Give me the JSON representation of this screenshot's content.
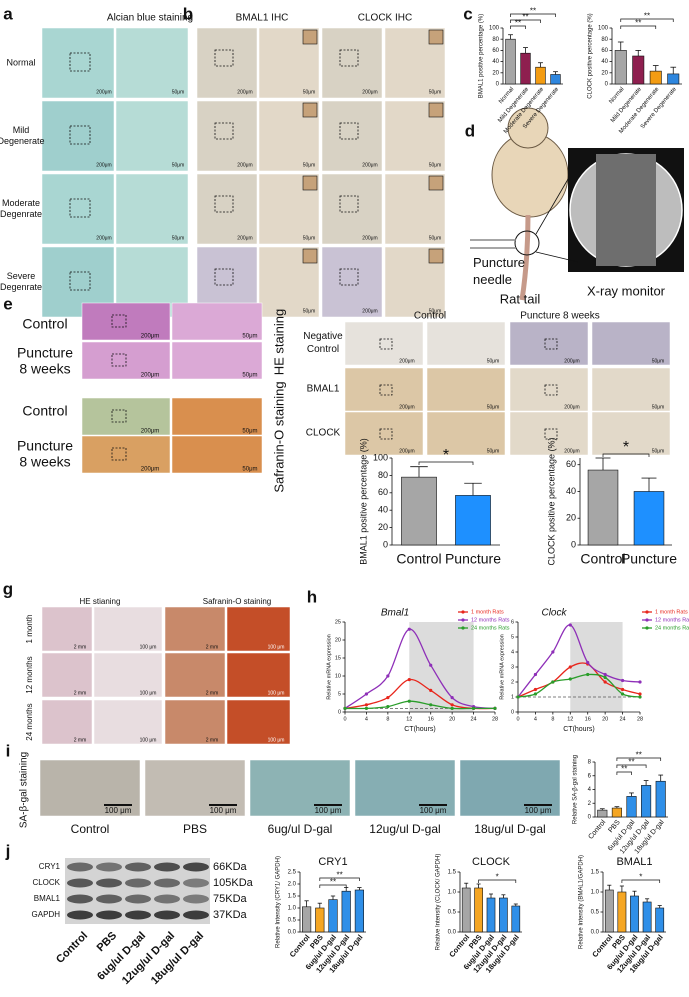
{
  "panel_labels": [
    "a",
    "b",
    "c",
    "d",
    "e",
    "f",
    "g",
    "h",
    "i",
    "j"
  ],
  "panel_a": {
    "title": "Alcian blue staining",
    "rows": [
      [
        "Normal"
      ],
      [
        "Mild",
        "Degenerate"
      ],
      [
        "Moderate",
        "Degenrate"
      ],
      [
        "Severe",
        "Degenrate"
      ]
    ],
    "scale_low": "200μm",
    "scale_high": "50μm"
  },
  "panel_b": {
    "titles": [
      "BMAL1 IHC",
      "CLOCK IHC"
    ],
    "scale_low": "200μm",
    "scale_high": "50μm"
  },
  "panel_d": {
    "needle": [
      "Puncture",
      "needle"
    ],
    "tail": "Rat tail",
    "monitor": "X-ray monitor"
  },
  "panel_e": {
    "rows": [
      [
        "Control"
      ],
      [
        "Puncture",
        "8 weeks"
      ]
    ],
    "stains": [
      "HE staining",
      "Safranin-O staining"
    ],
    "scale_low": "200μm",
    "scale_high": "50μm"
  },
  "panel_f": {
    "columns": [
      "Control",
      "Puncture 8 weeks"
    ],
    "rows": [
      [
        "Negative",
        "Control"
      ],
      [
        "BMAL1"
      ],
      [
        "CLOCK"
      ]
    ],
    "scale_low": "200μm",
    "scale_high": "50μm"
  },
  "panel_g": {
    "columns": [
      "HE stianing",
      "Safranin-O staining"
    ],
    "rows": [
      "1 month",
      "12 months",
      "24 months"
    ],
    "scale_low": "2 mm",
    "scale_high": "100 μm"
  },
  "panel_i": {
    "side_label": "SA-β-gal staining",
    "captions": [
      "Control",
      "PBS",
      "6ug/ul D-gal",
      "12ug/ul D-gal",
      "18ug/ul D-gal"
    ],
    "scale": "100 μm"
  },
  "panel_j": {
    "proteins": [
      "CRY1",
      "CLOCK",
      "BMAL1",
      "GAPDH"
    ],
    "sizes": [
      "66KDa",
      "105KDa",
      "75KDa",
      "37KDa"
    ],
    "lanes": [
      "Control",
      "PBS",
      "6ug/ul D-gal",
      "12ug/ul D-gal",
      "18ug/ul D-gal"
    ]
  },
  "chart_data": [
    {
      "type": "bar",
      "y_label": "BMAL1 positive percentage (%)",
      "categories": [
        "Normal",
        "Mild Degenerate",
        "Moderate Degenerate",
        "Severe Degenerate"
      ],
      "values": [
        80,
        55,
        30,
        17
      ],
      "errors": [
        8,
        10,
        8,
        5
      ],
      "colors": [
        "#a6a6a6",
        "#8e1f4f",
        "#f39c12",
        "#2e86de"
      ],
      "ylim": [
        0,
        100
      ],
      "yticks": [
        0,
        20,
        40,
        60,
        80,
        100
      ],
      "significance": [
        {
          "label": "**",
          "between": [
            "Normal",
            "Mild Degenerate"
          ]
        },
        {
          "label": "**",
          "between": [
            "Normal",
            "Moderate Degenerate"
          ]
        },
        {
          "label": "**",
          "between": [
            "Normal",
            "Severe Degenerate"
          ]
        }
      ]
    },
    {
      "type": "bar",
      "y_label": "CLOCK positive percentage (%)",
      "categories": [
        "Normal",
        "Mild Degenerate",
        "Moderate Degenerate",
        "Severe Degenerate"
      ],
      "values": [
        60,
        50,
        23,
        18
      ],
      "errors": [
        15,
        10,
        10,
        12
      ],
      "colors": [
        "#a6a6a6",
        "#8e1f4f",
        "#f39c12",
        "#2e86de"
      ],
      "ylim": [
        0,
        100
      ],
      "yticks": [
        0,
        20,
        40,
        60,
        80,
        100
      ],
      "significance": [
        {
          "label": "**",
          "between": [
            "Normal",
            "Moderate Degenerate"
          ]
        },
        {
          "label": "**",
          "between": [
            "Normal",
            "Severe Degenerate"
          ]
        }
      ]
    },
    {
      "type": "bar",
      "y_label": "BMAL1 positive percentage (%)",
      "categories": [
        "Control",
        "Puncture"
      ],
      "values": [
        78,
        57
      ],
      "errors": [
        12,
        14
      ],
      "colors": [
        "#a6a6a6",
        "#1e90ff"
      ],
      "ylim": [
        0,
        100
      ],
      "yticks": [
        0,
        20,
        40,
        60,
        80,
        100
      ],
      "significance": [
        {
          "label": "*",
          "between": [
            "Control",
            "Puncture"
          ]
        }
      ]
    },
    {
      "type": "bar",
      "y_label": "CLOCK positive percentage (%)",
      "categories": [
        "Control",
        "Puncture"
      ],
      "values": [
        56,
        40
      ],
      "errors": [
        9,
        10
      ],
      "colors": [
        "#a6a6a6",
        "#1e90ff"
      ],
      "ylim": [
        0,
        65
      ],
      "yticks": [
        0,
        20,
        40,
        60
      ],
      "significance": [
        {
          "label": "*",
          "between": [
            "Control",
            "Puncture"
          ]
        }
      ]
    },
    {
      "type": "line",
      "title": "Bmal1",
      "x_label": "CT(hours)",
      "y_label": "Relative mRNA expression",
      "x": [
        0,
        4,
        8,
        12,
        16,
        20,
        24,
        28
      ],
      "xlim": [
        0,
        28
      ],
      "xticks": [
        0,
        4,
        8,
        12,
        16,
        20,
        24,
        28
      ],
      "ylim": [
        0,
        25
      ],
      "yticks": [
        0,
        5,
        10,
        15,
        20,
        25
      ],
      "shaded_x": [
        12,
        24
      ],
      "reference_y": 1,
      "series": [
        {
          "name": "1 month Rats",
          "color": "#e8261c",
          "values": [
            1,
            2,
            4,
            9,
            6,
            2,
            1,
            1
          ]
        },
        {
          "name": "12 months Rats",
          "color": "#8e2fb8",
          "values": [
            1,
            5,
            10,
            23,
            13,
            4,
            1.5,
            1
          ]
        },
        {
          "name": "24 months Rats",
          "color": "#2a9d2a",
          "values": [
            1,
            1,
            1.5,
            3,
            2,
            1,
            1,
            1
          ]
        }
      ]
    },
    {
      "type": "line",
      "title": "Clock",
      "x_label": "CT(hours)",
      "y_label": "Relative mRNA expression",
      "x": [
        0,
        4,
        8,
        12,
        16,
        20,
        24,
        28
      ],
      "xlim": [
        0,
        28
      ],
      "xticks": [
        0,
        4,
        8,
        12,
        16,
        20,
        24,
        28
      ],
      "ylim": [
        0,
        6
      ],
      "yticks": [
        0,
        1,
        2,
        3,
        4,
        5,
        6
      ],
      "shaded_x": [
        12,
        24
      ],
      "reference_y": 1,
      "series": [
        {
          "name": "1 month Rats",
          "color": "#e8261c",
          "values": [
            1,
            1.5,
            2,
            3,
            3.2,
            2,
            1.5,
            1.2
          ]
        },
        {
          "name": "12 months Rats",
          "color": "#8e2fb8",
          "values": [
            1,
            2.5,
            4,
            5.8,
            3.3,
            2.5,
            2.1,
            2
          ]
        },
        {
          "name": "24 months Rats",
          "color": "#2a9d2a",
          "values": [
            1,
            1.2,
            2,
            2.2,
            2.5,
            2.3,
            1.2,
            1
          ]
        }
      ]
    },
    {
      "type": "bar",
      "y_label": "Relative SA-β-gal staining",
      "categories": [
        "Control",
        "PBS",
        "6ug/ul D-gal",
        "12ug/ul D-gal",
        "18ug/ul D-gal"
      ],
      "values": [
        1,
        1.3,
        3,
        4.6,
        5.2
      ],
      "errors": [
        0.2,
        0.2,
        0.5,
        0.7,
        0.9
      ],
      "colors": [
        "#a6a6a6",
        "#f5a623",
        "#2f8fe8",
        "#2f8fe8",
        "#2f8fe8"
      ],
      "ylim": [
        0,
        8
      ],
      "yticks": [
        0,
        2,
        4,
        6,
        8
      ],
      "significance": [
        {
          "label": "**",
          "between": [
            "PBS",
            "6ug/ul D-gal"
          ]
        },
        {
          "label": "**",
          "between": [
            "PBS",
            "12ug/ul D-gal"
          ]
        },
        {
          "label": "**",
          "between": [
            "PBS",
            "18ug/ul D-gal"
          ]
        }
      ]
    },
    {
      "type": "bar",
      "title": "CRY1",
      "y_label": "Relative Intensity (CRY1/ GAPDH)",
      "categories": [
        "Control",
        "PBS",
        "6ug/ul D-gal",
        "12ug/ul D-gal",
        "18ug/ul D-gal"
      ],
      "values": [
        1.05,
        1,
        1.35,
        1.7,
        1.75
      ],
      "errors": [
        0.25,
        0.2,
        0.15,
        0.15,
        0.1
      ],
      "colors": [
        "#a6a6a6",
        "#f5a623",
        "#2f8fe8",
        "#2f8fe8",
        "#2f8fe8"
      ],
      "ylim": [
        0,
        2.5
      ],
      "yticks": [
        {
          "value": 0,
          "label": "0.0"
        },
        0.5,
        {
          "value": 1,
          "label": "1.0"
        },
        1.5,
        {
          "value": 2,
          "label": "2.0"
        },
        2.5
      ],
      "significance": [
        {
          "label": "**",
          "between": [
            "PBS",
            "12ug/ul D-gal"
          ]
        },
        {
          "label": "**",
          "between": [
            "PBS",
            "18ug/ul D-gal"
          ]
        }
      ]
    },
    {
      "type": "bar",
      "title": "CLOCK",
      "y_label": "Relative Intensity (CLOCK/ GAPDH)",
      "categories": [
        "Control",
        "PBS",
        "6ug/ul D-gal",
        "12ug/ul D-gal",
        "18ug/ul D-gal"
      ],
      "values": [
        1.1,
        1.1,
        0.85,
        0.85,
        0.65
      ],
      "errors": [
        0.12,
        0.1,
        0.1,
        0.08,
        0.05
      ],
      "colors": [
        "#a6a6a6",
        "#f5a623",
        "#2f8fe8",
        "#2f8fe8",
        "#2f8fe8"
      ],
      "ylim": [
        0,
        1.5
      ],
      "yticks": [
        {
          "value": 0,
          "label": "0.0"
        },
        0.5,
        {
          "value": 1,
          "label": "1.0"
        },
        1.5
      ],
      "significance": [
        {
          "label": "*",
          "between": [
            "PBS",
            "18ug/ul D-gal"
          ]
        }
      ]
    },
    {
      "type": "bar",
      "title": "BMAL1",
      "y_label": "Relative Intensity (BMAL1/GAPDH)",
      "categories": [
        "Control",
        "PBS",
        "6ug/ul D-gal",
        "12ug/ul D-gal",
        "18ug/ul D-gal"
      ],
      "values": [
        1.05,
        1,
        0.9,
        0.75,
        0.6
      ],
      "errors": [
        0.12,
        0.15,
        0.12,
        0.08,
        0.06
      ],
      "colors": [
        "#a6a6a6",
        "#f5a623",
        "#2f8fe8",
        "#2f8fe8",
        "#2f8fe8"
      ],
      "ylim": [
        0,
        1.5
      ],
      "yticks": [
        {
          "value": 0,
          "label": "0.0"
        },
        0.5,
        {
          "value": 1,
          "label": "1.0"
        },
        1.5
      ],
      "significance": [
        {
          "label": "*",
          "between": [
            "PBS",
            "18ug/ul D-gal"
          ]
        }
      ]
    }
  ]
}
